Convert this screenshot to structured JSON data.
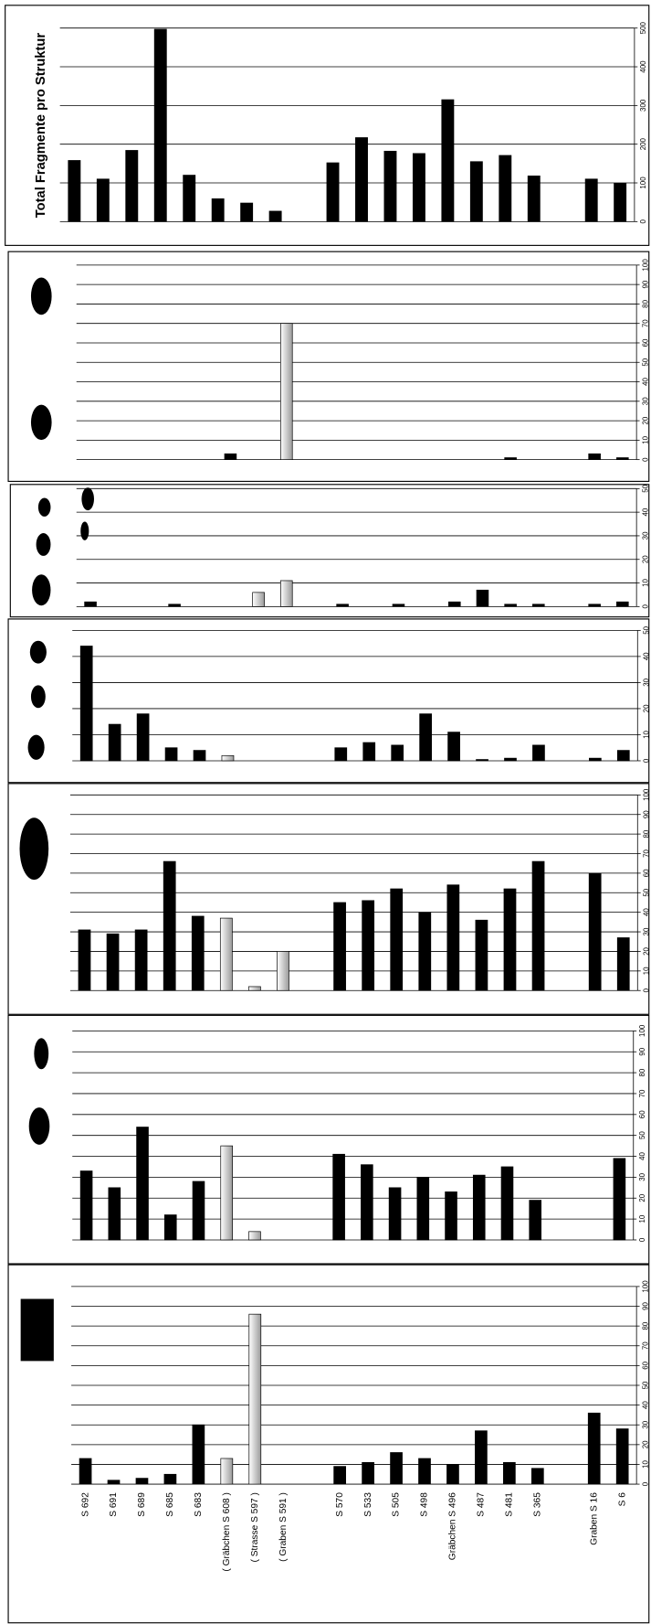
{
  "chart_data": [
    {
      "type": "bar",
      "title": "Total Fragmente pro Struktur",
      "values": [
        158,
        110,
        184,
        497,
        120,
        59,
        48,
        27,
        null,
        152,
        217,
        182,
        176,
        315,
        155,
        171,
        118,
        null,
        110,
        99
      ],
      "colors": [
        "#000000",
        "#000000",
        "#000000",
        "#000000",
        "#000000",
        "#000000",
        "#000000",
        "#000000",
        null,
        "#000000",
        "#000000",
        "#000000",
        "#000000",
        "#000000",
        "#000000",
        "#000000",
        "#000000",
        null,
        "#000000",
        "#000000"
      ],
      "ylim": [
        0,
        500
      ],
      "yticks": [
        0,
        100,
        200,
        300,
        400,
        500
      ],
      "grid": true
    },
    {
      "type": "bar",
      "values": [
        0,
        0,
        0,
        0,
        0,
        3,
        0,
        70,
        null,
        0,
        0,
        0,
        0,
        0,
        0,
        1,
        0,
        null,
        3,
        1
      ],
      "colors": [
        "#000000",
        "#000000",
        "#000000",
        "#000000",
        "#000000",
        "#000000",
        "#d9d9d9",
        "#d9d9d9",
        null,
        "#000000",
        "#000000",
        "#000000",
        "#000000",
        "#000000",
        "#000000",
        "#000000",
        "#000000",
        null,
        "#000000",
        "#000000"
      ],
      "ylim": [
        0,
        100
      ],
      "yticks": [
        0,
        10,
        20,
        30,
        40,
        50,
        60,
        70,
        80,
        90,
        100
      ],
      "grid": true
    },
    {
      "type": "bar",
      "values": [
        2,
        0,
        0,
        1,
        0,
        0,
        6,
        11,
        null,
        1,
        0,
        1,
        0,
        2,
        7,
        1,
        1,
        null,
        1,
        2
      ],
      "colors": [
        "#000000",
        "#000000",
        "#000000",
        "#000000",
        "#000000",
        "#d9d9d9",
        "#d9d9d9",
        "#d9d9d9",
        null,
        "#000000",
        "#000000",
        "#000000",
        "#000000",
        "#000000",
        "#000000",
        "#000000",
        "#000000",
        null,
        "#000000",
        "#000000"
      ],
      "ylim": [
        0,
        50
      ],
      "yticks": [
        0,
        10,
        20,
        30,
        40,
        50
      ],
      "grid": true
    },
    {
      "type": "bar",
      "values": [
        44,
        14,
        18,
        5,
        4,
        2,
        0,
        0,
        null,
        5,
        7,
        6,
        18,
        11,
        0.5,
        1,
        6,
        null,
        1,
        4
      ],
      "colors": [
        "#000000",
        "#000000",
        "#000000",
        "#000000",
        "#000000",
        "#d9d9d9",
        "#d9d9d9",
        "#d9d9d9",
        null,
        "#000000",
        "#000000",
        "#000000",
        "#000000",
        "#000000",
        "#000000",
        "#000000",
        "#000000",
        null,
        "#000000",
        "#000000"
      ],
      "ylim": [
        0,
        50
      ],
      "yticks": [
        0,
        10,
        20,
        30,
        40,
        50
      ],
      "grid": true
    },
    {
      "type": "bar",
      "values": [
        31,
        29,
        31,
        66,
        38,
        37,
        2,
        20,
        null,
        45,
        46,
        52,
        40,
        54,
        36,
        52,
        66,
        null,
        60,
        27
      ],
      "colors": [
        "#000000",
        "#000000",
        "#000000",
        "#000000",
        "#000000",
        "#d9d9d9",
        "#d9d9d9",
        "#d9d9d9",
        null,
        "#000000",
        "#000000",
        "#000000",
        "#000000",
        "#000000",
        "#000000",
        "#000000",
        "#000000",
        null,
        "#000000",
        "#000000"
      ],
      "ylim": [
        0,
        100
      ],
      "yticks": [
        0,
        10,
        20,
        30,
        40,
        50,
        60,
        70,
        80,
        90,
        100
      ],
      "grid": true
    },
    {
      "type": "bar",
      "values": [
        33,
        25,
        54,
        12,
        28,
        45,
        4,
        0,
        null,
        41,
        36,
        25,
        30,
        23,
        31,
        35,
        19,
        null,
        0,
        39
      ],
      "colors": [
        "#000000",
        "#000000",
        "#000000",
        "#000000",
        "#000000",
        "#d9d9d9",
        "#d9d9d9",
        "#d9d9d9",
        null,
        "#000000",
        "#000000",
        "#000000",
        "#000000",
        "#000000",
        "#000000",
        "#000000",
        "#000000",
        null,
        "#000000",
        "#000000"
      ],
      "ylim": [
        0,
        100
      ],
      "yticks": [
        0,
        10,
        20,
        30,
        40,
        50,
        60,
        70,
        80,
        90,
        100
      ],
      "grid": true
    },
    {
      "type": "bar",
      "categories": [
        "S 692",
        "S 691",
        "S 689",
        "S 685",
        "S 683",
        "( Gräbchen S 608 )",
        "( Strasse S 597 )",
        "( Graben S 591 )",
        null,
        "S 570",
        "S 533",
        "S 505",
        "S 498",
        "Gräbchen S 496",
        "S 487",
        "S 481",
        "S 365",
        null,
        "Graben S 16",
        "S 6"
      ],
      "values": [
        13,
        2,
        3,
        5,
        30,
        13,
        86,
        0,
        null,
        9,
        11,
        16,
        13,
        10,
        27,
        11,
        8,
        null,
        36,
        28
      ],
      "colors": [
        "#000000",
        "#000000",
        "#000000",
        "#000000",
        "#000000",
        "#d9d9d9",
        "#d9d9d9",
        "#d9d9d9",
        null,
        "#000000",
        "#000000",
        "#000000",
        "#000000",
        "#000000",
        "#000000",
        "#000000",
        "#000000",
        null,
        "#000000",
        "#000000"
      ],
      "ylim": [
        0,
        100
      ],
      "yticks": [
        0,
        10,
        20,
        30,
        40,
        50,
        60,
        70,
        80,
        90,
        100
      ],
      "grid": true
    }
  ]
}
